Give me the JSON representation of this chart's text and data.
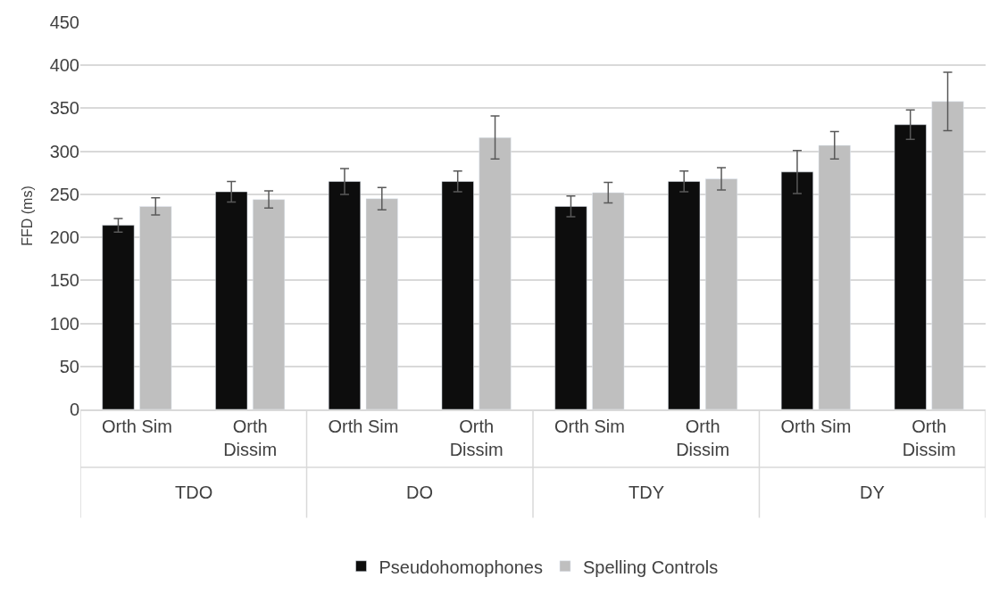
{
  "chart_data": {
    "type": "bar",
    "ylabel": "FFD (ms)",
    "categories": [
      "Orth Sim",
      "Orth Dissim",
      "Orth Sim",
      "Orth Dissim",
      "Orth Sim",
      "Orth Dissim",
      "Orth Sim",
      "Orth Dissim"
    ],
    "annotations": [
      "TDO",
      "DO",
      "TDY",
      "DY"
    ],
    "series": [
      {
        "name": "Pseudohomophones",
        "color": "#0d0d0d",
        "values": [
          214,
          253,
          265,
          265,
          236,
          265,
          276,
          331
        ],
        "errors": [
          8,
          12,
          15,
          12,
          12,
          12,
          25,
          17
        ]
      },
      {
        "name": "Spelling Controls",
        "color": "#bfbfbf",
        "values": [
          236,
          244,
          245,
          316,
          252,
          268,
          307,
          358
        ],
        "errors": [
          10,
          10,
          13,
          25,
          12,
          13,
          16,
          34
        ]
      }
    ],
    "ylim": [
      0,
      450
    ],
    "yticks": [
      0,
      50,
      100,
      150,
      200,
      250,
      300,
      350,
      400,
      450
    ],
    "grid": "y",
    "legend": "bottom"
  }
}
